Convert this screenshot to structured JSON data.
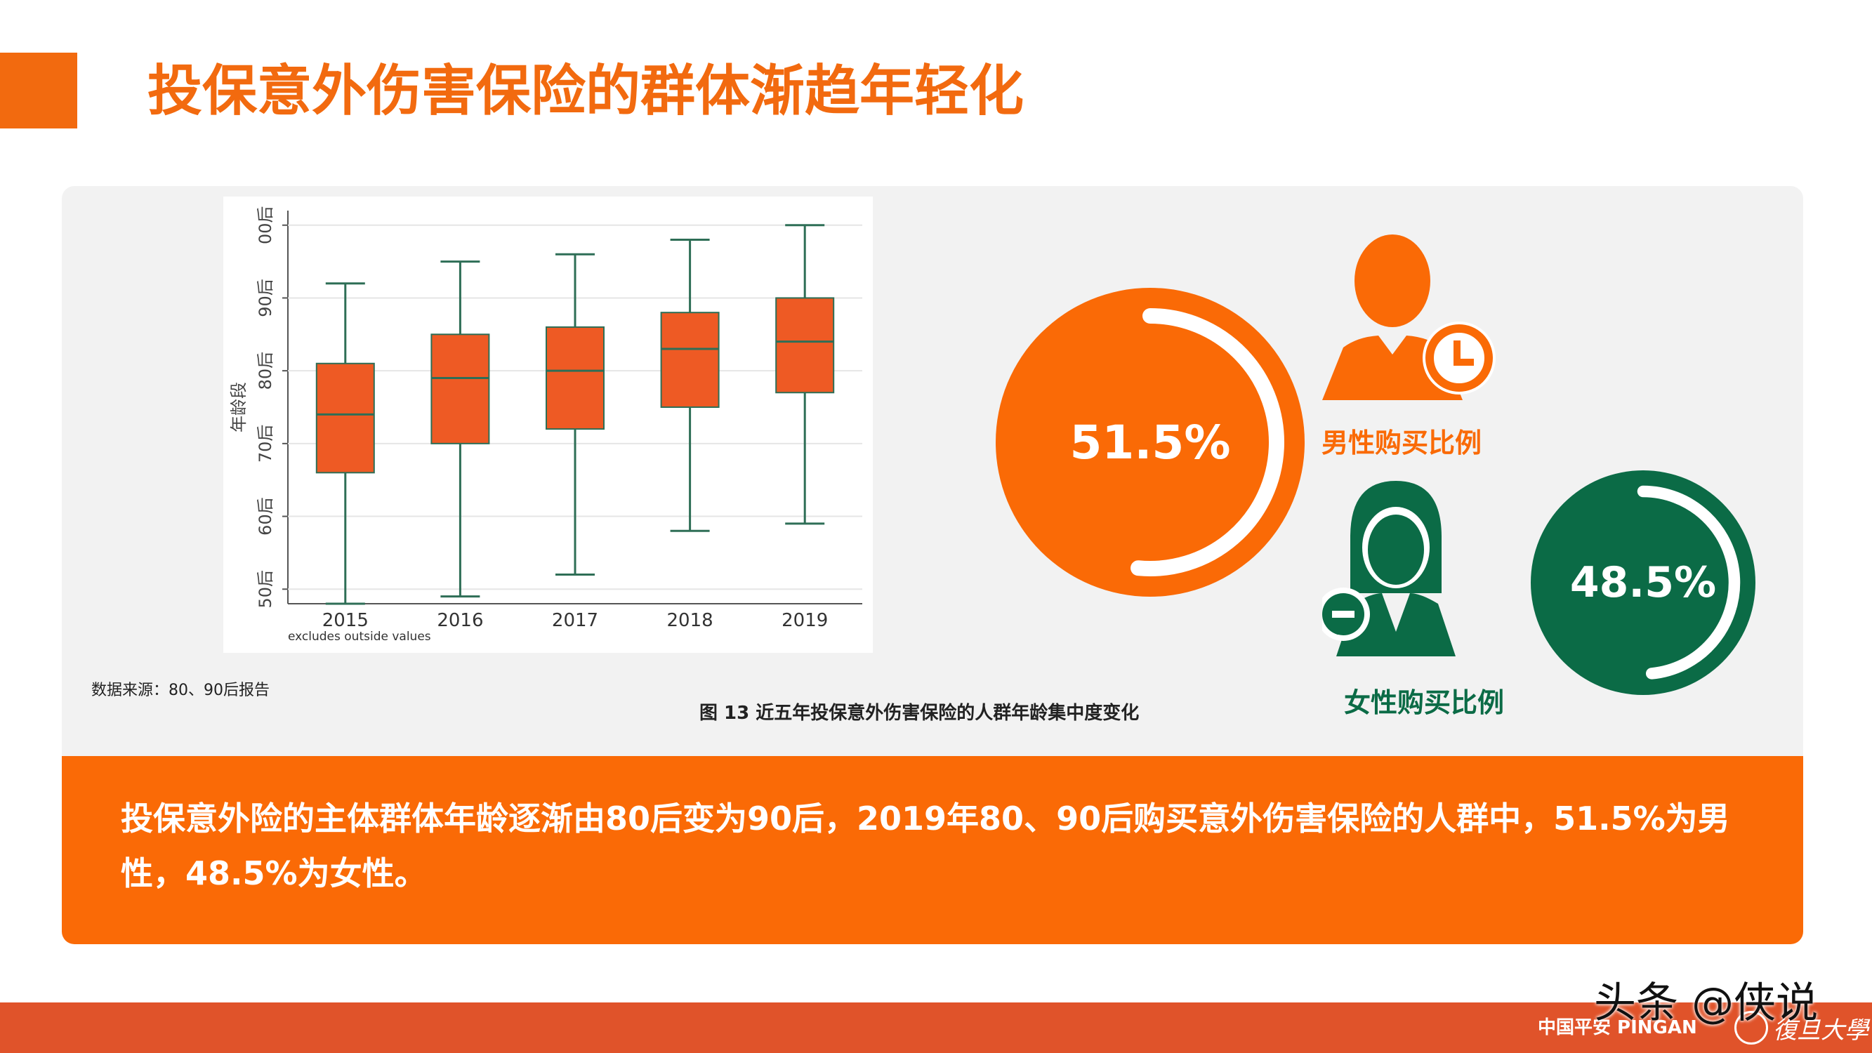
{
  "title": "投保意外伤害保险的群体渐趋年轻化",
  "chart_data": {
    "type": "box",
    "categories": [
      "2015",
      "2016",
      "2017",
      "2018",
      "2019"
    ],
    "yticks": [
      "50后",
      "60后",
      "70后",
      "80后",
      "90后",
      "00后"
    ],
    "ytick_values": [
      50,
      60,
      70,
      80,
      90,
      100
    ],
    "ylabel": "年龄段",
    "note": "excludes outside values",
    "ylim": [
      48,
      102
    ],
    "series": [
      {
        "whisker_low": 48,
        "q1": 66,
        "median": 74,
        "q3": 81,
        "whisker_high": 92
      },
      {
        "whisker_low": 49,
        "q1": 70,
        "median": 79,
        "q3": 85,
        "whisker_high": 95
      },
      {
        "whisker_low": 52,
        "q1": 72,
        "median": 80,
        "q3": 86,
        "whisker_high": 96
      },
      {
        "whisker_low": 58,
        "q1": 75,
        "median": 83,
        "q3": 88,
        "whisker_high": 98
      },
      {
        "whisker_low": 59,
        "q1": 77,
        "median": 84,
        "q3": 90,
        "whisker_high": 100
      }
    ],
    "box_color": "#ee5a24",
    "line_color": "#2e6e56",
    "grid": true
  },
  "source": "数据来源：80、90后报告",
  "caption": "图 13   近五年投保意外伤害保险的人群年龄集中度变化",
  "male": {
    "value": "51.5%",
    "fraction": 0.515,
    "label": "男性购买比例",
    "color": "#fa6a06",
    "icon": "male-clock-icon"
  },
  "female": {
    "value": "48.5%",
    "fraction": 0.485,
    "label": "女性购买比例",
    "color": "#0b6b46",
    "icon": "female-minus-icon"
  },
  "summary": "投保意外险的主体群体年龄逐渐由80后变为90后，2019年80、90后购买意外伤害保险的人群中，51.5%为男性，48.5%为女性。",
  "footer": {
    "brand": "中国平安 PINGAN",
    "university": "復旦大學"
  },
  "watermark": "头条 @侠说"
}
